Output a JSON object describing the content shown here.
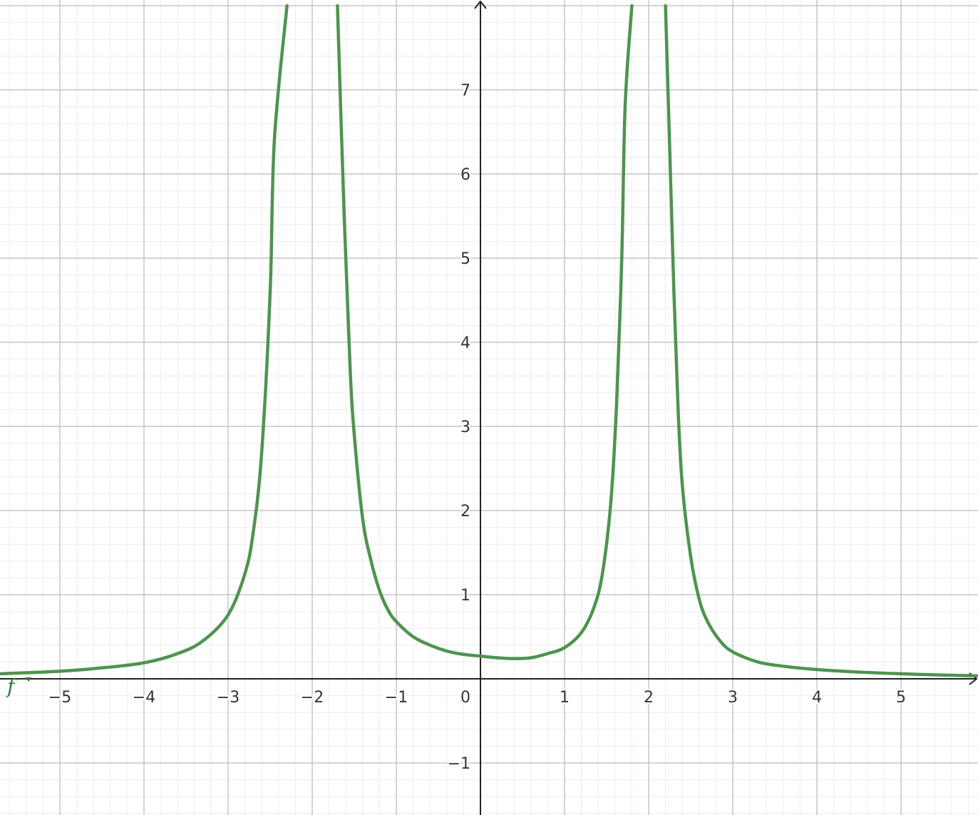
{
  "chart_data": {
    "type": "line",
    "title": "",
    "xlabel": "",
    "ylabel": "",
    "xlim": [
      -5.7,
      5.9
    ],
    "ylim": [
      -1.6,
      8.0
    ],
    "grid": true,
    "minor_grid_step": 0.2,
    "major_grid_step": 1,
    "x_ticks": [
      -5,
      -4,
      -3,
      -2,
      -1,
      1,
      2,
      3,
      4,
      5
    ],
    "x_tick_labels": [
      "−5",
      "−4",
      "−3",
      "−2",
      "−1",
      "1",
      "2",
      "3",
      "4",
      "5"
    ],
    "y_ticks": [
      -1,
      1,
      2,
      3,
      4,
      5,
      6,
      7
    ],
    "y_tick_labels": [
      "−1",
      "1",
      "2",
      "3",
      "4",
      "5",
      "6",
      "7"
    ],
    "origin_label": "0",
    "series": [
      {
        "name": "f",
        "color": "#4e944f",
        "vertical_asymptotes": [
          -2,
          2
        ],
        "values": [
          [
            -5.7,
            0.06
          ],
          [
            -5.0,
            0.09
          ],
          [
            -4.5,
            0.13
          ],
          [
            -4.0,
            0.19
          ],
          [
            -3.6,
            0.3
          ],
          [
            -3.3,
            0.45
          ],
          [
            -3.0,
            0.76
          ],
          [
            -2.8,
            1.25
          ],
          [
            -2.7,
            1.75
          ],
          [
            -2.6,
            2.7
          ],
          [
            -2.5,
            4.6
          ],
          [
            -2.45,
            6.4
          ],
          [
            -2.3,
            8.0
          ],
          [
            -1.7,
            8.0
          ],
          [
            -1.62,
            5.5
          ],
          [
            -1.55,
            3.7
          ],
          [
            -1.5,
            2.9
          ],
          [
            -1.4,
            1.9
          ],
          [
            -1.3,
            1.4
          ],
          [
            -1.2,
            1.05
          ],
          [
            -1.1,
            0.82
          ],
          [
            -1.0,
            0.68
          ],
          [
            -0.8,
            0.5
          ],
          [
            -0.6,
            0.4
          ],
          [
            -0.4,
            0.33
          ],
          [
            -0.2,
            0.29
          ],
          [
            0.0,
            0.27
          ],
          [
            0.2,
            0.25
          ],
          [
            0.4,
            0.24
          ],
          [
            0.6,
            0.25
          ],
          [
            0.8,
            0.3
          ],
          [
            1.0,
            0.37
          ],
          [
            1.2,
            0.55
          ],
          [
            1.35,
            0.85
          ],
          [
            1.45,
            1.25
          ],
          [
            1.55,
            2.1
          ],
          [
            1.62,
            3.3
          ],
          [
            1.68,
            5.0
          ],
          [
            1.72,
            6.8
          ],
          [
            1.8,
            8.0
          ],
          [
            2.2,
            8.0
          ],
          [
            2.25,
            6.3
          ],
          [
            2.3,
            4.6
          ],
          [
            2.35,
            3.2
          ],
          [
            2.4,
            2.3
          ],
          [
            2.5,
            1.45
          ],
          [
            2.6,
            0.95
          ],
          [
            2.7,
            0.68
          ],
          [
            2.85,
            0.45
          ],
          [
            3.0,
            0.32
          ],
          [
            3.3,
            0.2
          ],
          [
            3.6,
            0.15
          ],
          [
            4.0,
            0.11
          ],
          [
            4.5,
            0.08
          ],
          [
            5.0,
            0.06
          ],
          [
            5.5,
            0.045
          ],
          [
            5.9,
            0.035
          ]
        ]
      }
    ]
  },
  "colors": {
    "minor_grid": "#ececec",
    "major_grid": "#c6c6c6",
    "axis": "#222222",
    "curve": "#4e944f",
    "label": "#2e7d32"
  }
}
